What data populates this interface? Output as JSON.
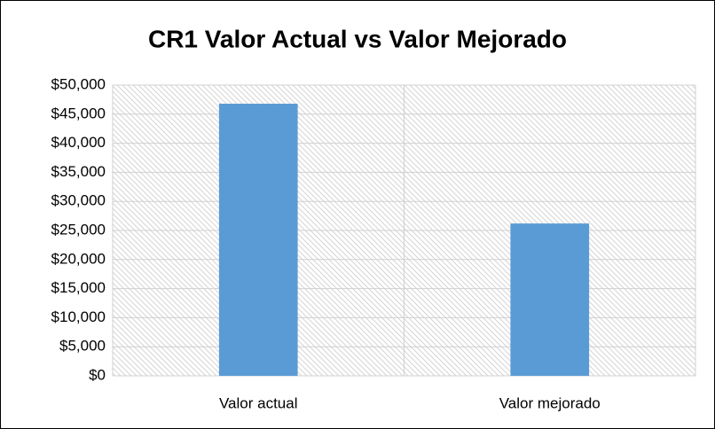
{
  "chart_data": {
    "type": "bar",
    "title": "CR1 Valor Actual vs Valor Mejorado",
    "categories": [
      "Valor actual",
      "Valor mejorado"
    ],
    "values": [
      46800,
      26200
    ],
    "color": "#5b9bd5",
    "ylim": [
      0,
      50000
    ],
    "yticks": [
      {
        "value": 0,
        "label": "$0"
      },
      {
        "value": 5000,
        "label": "$5,000"
      },
      {
        "value": 10000,
        "label": "$10,000"
      },
      {
        "value": 15000,
        "label": "$15,000"
      },
      {
        "value": 20000,
        "label": "$20,000"
      },
      {
        "value": 25000,
        "label": "$25,000"
      },
      {
        "value": 30000,
        "label": "$30,000"
      },
      {
        "value": 35000,
        "label": "$35,000"
      },
      {
        "value": 40000,
        "label": "$40,000"
      },
      {
        "value": 45000,
        "label": "$45,000"
      },
      {
        "value": 50000,
        "label": "$50,000"
      }
    ],
    "grid": true
  }
}
